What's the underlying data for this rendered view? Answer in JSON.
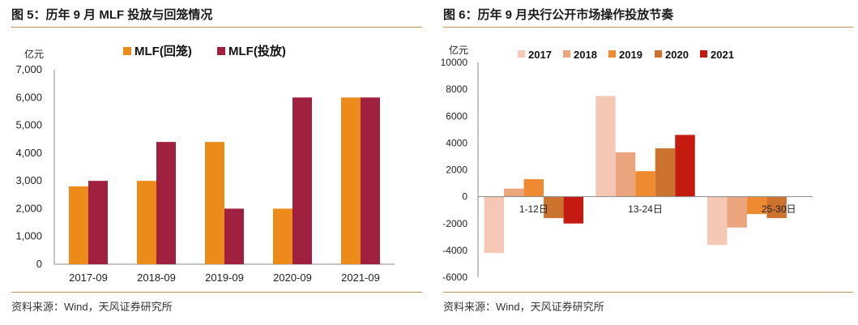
{
  "colors": {
    "mlf_rollover": "#ED8B1A",
    "mlf_issue": "#A0203F",
    "y2017": "#F4C8B4",
    "y2018": "#EAA47E",
    "y2019": "#EE8B30",
    "y2020": "#CC7330",
    "y2021": "#C41A10",
    "rule": "#B9925B"
  },
  "left": {
    "title": "图 5：历年 9 月 MLF 投放与回笼情况",
    "source": "资料来源：Wind，天风证券研究所"
  },
  "right": {
    "title": "图 6：历年 9 月央行公开市场操作投放节奏",
    "source": "资料来源：Wind，天风证券研究所"
  },
  "chart_data": [
    {
      "type": "bar",
      "ylabel": "亿元",
      "ylim": [
        0,
        7000
      ],
      "yticks": [
        "0",
        "1,000",
        "2,000",
        "3,000",
        "4,000",
        "5,000",
        "6,000",
        "7,000"
      ],
      "categories": [
        "2017-09",
        "2018-09",
        "2019-09",
        "2020-09",
        "2021-09"
      ],
      "legend_position": "top",
      "grid": false,
      "series": [
        {
          "name": "MLF(回笼)",
          "color_key": "mlf_rollover",
          "values": [
            2800,
            3000,
            4400,
            2000,
            6000
          ]
        },
        {
          "name": "MLF(投放)",
          "color_key": "mlf_issue",
          "values": [
            3000,
            4400,
            2000,
            6000,
            6000
          ]
        }
      ]
    },
    {
      "type": "bar",
      "ylabel": "亿元",
      "ylim": [
        -6000,
        10000
      ],
      "yticks": [
        "-6000",
        "-4000",
        "-2000",
        "0",
        "2000",
        "4000",
        "6000",
        "8000",
        "10000"
      ],
      "categories": [
        "1-12日",
        "13-24日",
        "25-30日"
      ],
      "legend_position": "top",
      "grid": false,
      "series": [
        {
          "name": "2017",
          "color_key": "y2017",
          "values": [
            -4200,
            7500,
            -3600
          ]
        },
        {
          "name": "2018",
          "color_key": "y2018",
          "values": [
            600,
            3300,
            -2300
          ]
        },
        {
          "name": "2019",
          "color_key": "y2019",
          "values": [
            1300,
            1900,
            -1300
          ]
        },
        {
          "name": "2020",
          "color_key": "y2020",
          "values": [
            -1600,
            3600,
            -1600
          ]
        },
        {
          "name": "2021",
          "color_key": "y2021",
          "values": [
            -2000,
            4600,
            null
          ]
        }
      ]
    }
  ]
}
